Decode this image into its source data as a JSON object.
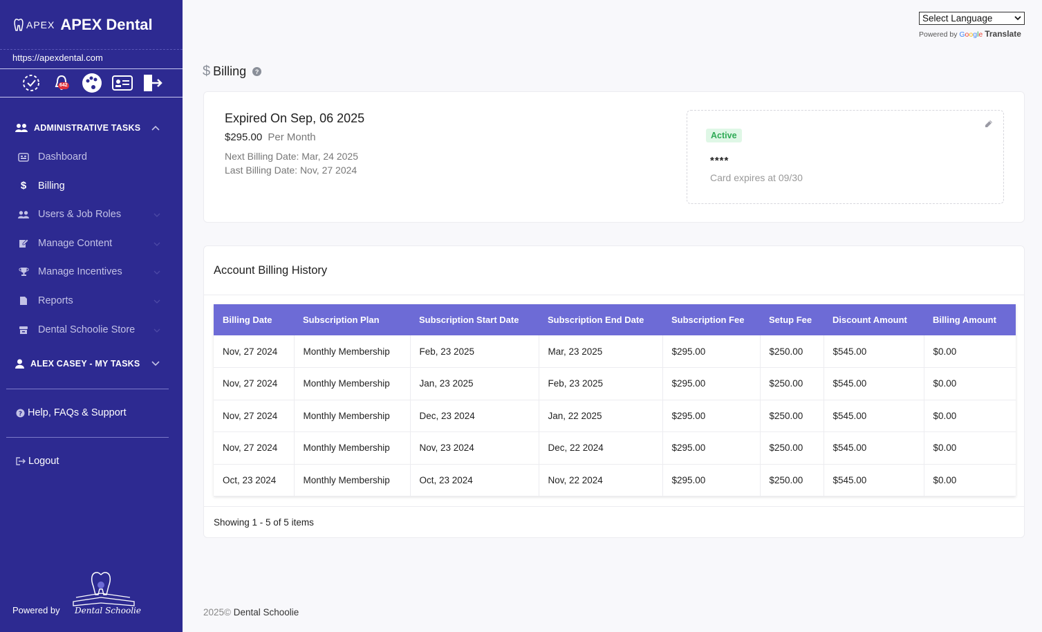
{
  "brand": {
    "logo_text": "APEX",
    "name": "APEX Dental",
    "url": "https://apexdental.com"
  },
  "top_icons": {
    "notification_count": "642"
  },
  "sidebar": {
    "admin_section": "ADMINISTRATIVE TASKS",
    "items": [
      {
        "label": "Dashboard",
        "icon": "dashboard-icon"
      },
      {
        "label": "Billing",
        "icon": "dollar-icon"
      },
      {
        "label": "Users & Job Roles",
        "icon": "users-icon"
      },
      {
        "label": "Manage Content",
        "icon": "edit-icon"
      },
      {
        "label": "Manage Incentives",
        "icon": "trophy-icon"
      },
      {
        "label": "Reports",
        "icon": "file-icon"
      },
      {
        "label": "Dental Schoolie Store",
        "icon": "store-icon"
      }
    ],
    "my_tasks_section": "ALEX CASEY - MY TASKS",
    "help_label": "Help, FAQs & Support",
    "logout_label": "Logout",
    "powered_by": "Powered by",
    "powered_logo_text": "Dental Schoolie"
  },
  "translate": {
    "select_label": "Select Language",
    "powered_by": "Powered by",
    "google": "Google",
    "translate_word": "Translate"
  },
  "page": {
    "title": "Billing"
  },
  "plan": {
    "expired": "Expired On Sep, 06 2025",
    "price": "$295.00",
    "period": "Per Month",
    "next_billing": "Next Billing Date: Mar, 24 2025",
    "last_billing": "Last Billing Date: Nov, 27 2024",
    "status": "Active",
    "card_mask": "****",
    "card_expiry": "Card expires at 09/30"
  },
  "history": {
    "title": "Account Billing History",
    "columns": [
      "Billing Date",
      "Subscription Plan",
      "Subscription Start Date",
      "Subscription End Date",
      "Subscription Fee",
      "Setup Fee",
      "Discount Amount",
      "Billing Amount"
    ],
    "rows": [
      [
        "Nov, 27 2024",
        "Monthly Membership",
        "Feb, 23 2025",
        "Mar, 23 2025",
        "$295.00",
        "$250.00",
        "$545.00",
        "$0.00"
      ],
      [
        "Nov, 27 2024",
        "Monthly Membership",
        "Jan, 23 2025",
        "Feb, 23 2025",
        "$295.00",
        "$250.00",
        "$545.00",
        "$0.00"
      ],
      [
        "Nov, 27 2024",
        "Monthly Membership",
        "Dec, 23 2024",
        "Jan, 22 2025",
        "$295.00",
        "$250.00",
        "$545.00",
        "$0.00"
      ],
      [
        "Nov, 27 2024",
        "Monthly Membership",
        "Nov, 23 2024",
        "Dec, 22 2024",
        "$295.00",
        "$250.00",
        "$545.00",
        "$0.00"
      ],
      [
        "Oct, 23 2024",
        "Monthly Membership",
        "Oct, 23 2024",
        "Nov, 22 2024",
        "$295.00",
        "$250.00",
        "$545.00",
        "$0.00"
      ]
    ],
    "showing": "Showing 1 - 5 of 5 items"
  },
  "footer": {
    "year": "2025©",
    "company": "Dental Schoolie"
  },
  "colors": {
    "sidebar": "#2d2a91",
    "table_header": "#6d6bd6",
    "active_badge": "#2eaa55"
  }
}
